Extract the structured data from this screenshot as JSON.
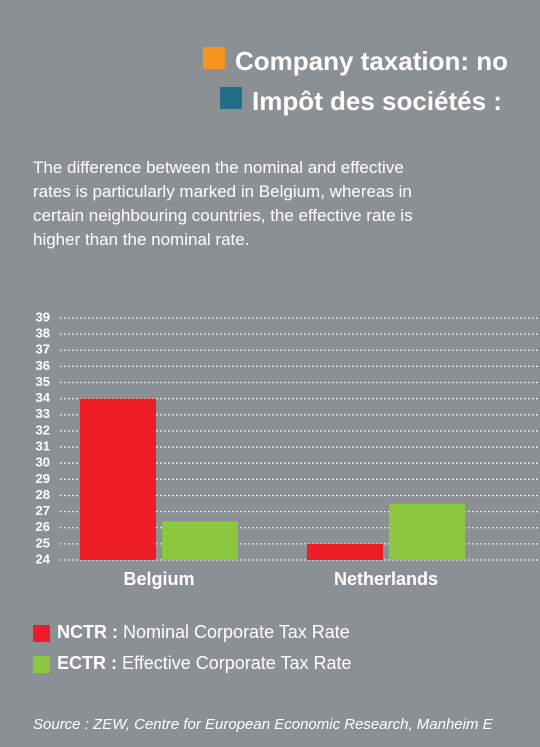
{
  "title": "Company taxation: no",
  "subtitle": "Impôt des sociétés :",
  "description": "The difference between the nominal and effective rates is particularly marked in Belgium, whereas in certain neighbouring countries, the effective rate is higher than the nominal rate.",
  "source": "Source : ZEW, Centre for European Economic Research, Manheim E",
  "chart_data": {
    "type": "bar",
    "categories": [
      "Belgium",
      "Netherlands"
    ],
    "series": [
      {
        "name": "NCTR :",
        "description": "Nominal Corporate Tax Rate",
        "color": "#ee1c25",
        "values": [
          34,
          25
        ]
      },
      {
        "name": "ECTR :",
        "description": "Effective Corporate Tax Rate",
        "color": "#8dc63f",
        "values": [
          26.4,
          27.5
        ]
      }
    ],
    "ylim": [
      24,
      39
    ],
    "yticks": [
      24,
      25,
      26,
      27,
      28,
      29,
      30,
      31,
      32,
      33,
      34,
      35,
      36,
      37,
      38,
      39
    ],
    "grid": true
  }
}
